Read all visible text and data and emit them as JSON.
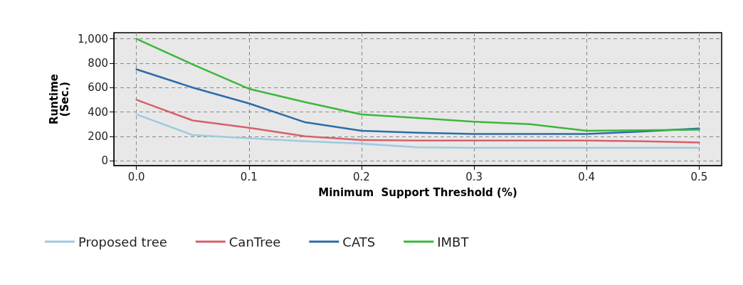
{
  "chart_data": {
    "type": "line",
    "xlabel": "Minimum  Support Threshold (%)",
    "ylabel": "Runtime\n(Sec.)",
    "x": [
      0,
      0.05,
      0.1,
      0.15,
      0.2,
      0.25,
      0.3,
      0.35,
      0.4,
      0.45,
      0.5
    ],
    "series": [
      {
        "name": "Proposed tree",
        "color": "#9ecae1",
        "values": [
          380,
          210,
          185,
          160,
          140,
          110,
          105,
          105,
          105,
          105,
          105
        ]
      },
      {
        "name": "CanTree",
        "color": "#d6616b",
        "values": [
          500,
          330,
          270,
          200,
          170,
          165,
          165,
          165,
          165,
          160,
          150
        ]
      },
      {
        "name": "CATS",
        "color": "#2b6ca8",
        "values": [
          750,
          600,
          470,
          315,
          245,
          230,
          220,
          220,
          220,
          240,
          265
        ]
      },
      {
        "name": "IMBT",
        "color": "#3cb73c",
        "values": [
          1000,
          790,
          590,
          480,
          380,
          350,
          320,
          300,
          245,
          250,
          255
        ]
      }
    ],
    "xlim": [
      -0.02,
      0.52
    ],
    "xticks": [
      {
        "value": 0,
        "label": "0.0"
      },
      0.1,
      0.2,
      0.3,
      0.4,
      0.5
    ],
    "ylim": [
      -40,
      1050
    ],
    "yticks": [
      0,
      200,
      400,
      600,
      800,
      {
        "value": 1000,
        "label": "1,000"
      }
    ],
    "grid": true,
    "legend": "bottom",
    "marker": "none",
    "line_style": "solid"
  }
}
